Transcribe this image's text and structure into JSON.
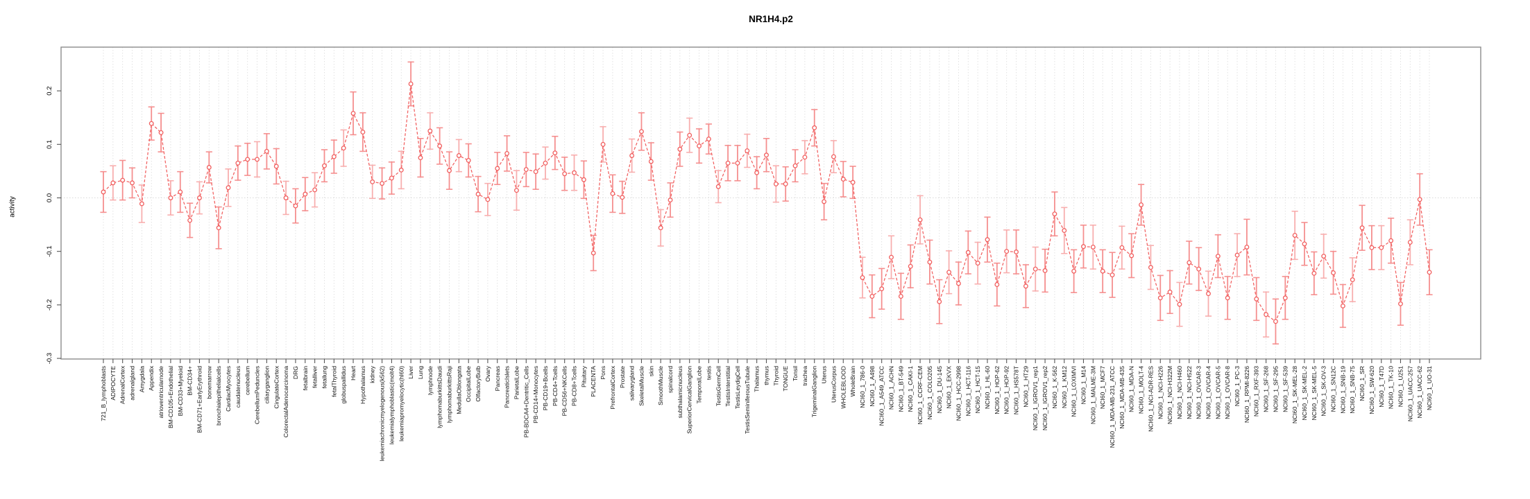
{
  "figure": {
    "title": "NR1H4.p2"
  },
  "chart_data": {
    "type": "line",
    "title": "NR1H4.p2",
    "xlabel": "",
    "ylabel": "activity",
    "ylim": [
      -0.3,
      0.28
    ],
    "yticks": [
      0.2,
      0.1,
      0.0,
      -0.1,
      -0.2,
      -0.3
    ],
    "grid": "vertical dotted gridline per category; dotted horizontal line at y=0",
    "legend_position": "none",
    "marker": "open-circle with error bars, dashed connecting line",
    "series_color": "#f15f5f",
    "errorbar_color": "#f59292",
    "categories": [
      "721_B_lymphoblasts",
      "ADIPOCYTE",
      "AdrenalCortex",
      "adrenalgland",
      "Amygdala",
      "Appendix",
      "atrioventricularnode",
      "BM-CD105+Endothelial",
      "BM-CD33+Myeloid",
      "BM-CD34+",
      "BM-CD71+EarlyErythroid",
      "bonemarrow",
      "bronchialepithelialcells",
      "CardiacMyocytes",
      "caudatenucleus",
      "cerebellum",
      "CerebellumPeduncles",
      "ciliaryganglion",
      "CingulateCortex",
      "ColorectalAdenocarcinoma",
      "DRG",
      "fetalbrain",
      "fetalliver",
      "fetallung",
      "fetalThyroid",
      "globuspallidus",
      "Heart",
      "Hypothalamus",
      "kidney",
      "leukemiachronicmyelogenous(k562)",
      "leukemialymphoblastic(molt4)",
      "leukemiapromyelocytic(hl60)",
      "Liver",
      "Lung",
      "lymphnode",
      "lymphomaburkittsDaudi",
      "lymphomaburkittsRaji",
      "MedullaOblongata",
      "OccipitalLobe",
      "OlfactoryBulb",
      "Ovary",
      "Pancreas",
      "PancreaticIslets",
      "ParietalLobe",
      "PB-BDCA4+Dentritic_Cells",
      "PB-CD14+Monocytes",
      "PB-CD19+Bcells",
      "PB-CD4+Tcells",
      "PB-CD56+NKCells",
      "PB-CD8+Tcells",
      "Pituitary",
      "PLACENTA",
      "Pons",
      "PrefrontalCortex",
      "Prostate",
      "salivarygland",
      "SkeletalMuscle",
      "skin",
      "SmoothMuscle",
      "spinalcord",
      "subthalamicnucleus",
      "SuperiorCervicalGanglion",
      "TemporalLobe",
      "testis",
      "TestisGermCell",
      "TestisInterstitial",
      "TestisLeydigCell",
      "TestisSeminiferousTubule",
      "Thalamus",
      "thymus",
      "Thyroid",
      "TONGUE",
      "Tonsil",
      "trachea",
      "TrigeminalGanglion",
      "Uterus",
      "UterusCorpus",
      "WHOLEBLOOD",
      "WholeBrain",
      "NCI60_1_786-0",
      "NCI60_1_A498",
      "NCI60_1_A549_ATCC",
      "NCI60_1_ACHN",
      "NCI60_1_BT-549",
      "NCI60_1_CAKI-1",
      "NCI60_1_CCRF-CEM",
      "NCI60_1_COLO205",
      "NCI60_1_DU-145",
      "NCI60_1_EKVX",
      "NCI60_1_HCC-2998",
      "NCI60_1_HCT-116",
      "NCI60_1_HCT-15",
      "NCI60_1_HL-60",
      "NCI60_1_HOP-62",
      "NCI60_1_HOP-92",
      "NCI60_1_HS578T",
      "NCI60_1_HT29",
      "NCI60_1_IGROV1_rep1",
      "NCI60_1_IGROV1_rep2",
      "NCI60_1_K-562",
      "NCI60_1_KM12",
      "NCI60_1_LOXIMVI",
      "NCI60_1_M14",
      "NCI60_1_MALME-3M",
      "NCI60_1_MCF7",
      "NCI60_1_MDA-MB-231_ATCC",
      "NCI60_1_MDA-MB-435",
      "NCI60_1_MDA-N",
      "NCI60_1_MOLT-4",
      "NCI60_1_NCI-ADR-RES",
      "NCI60_1_NCI-H226",
      "NCI60_1_NCI-H322M",
      "NCI60_1_NCI-H460",
      "NCI60_1_NCI-H522",
      "NCI60_1_OVCAR-3",
      "NCI60_1_OVCAR-4",
      "NCI60_1_OVCAR-5",
      "NCI60_1_OVCAR-8",
      "NCI60_1_PC-3",
      "NCI60_1_RPMI-8226",
      "NCI60_1_RXF-393",
      "NCI60_1_SF-268",
      "NCI60_1_SF-295",
      "NCI60_1_SF-539",
      "NCI60_1_SK-MEL-28",
      "NCI60_1_SK-MEL-2",
      "NCI60_1_SK-MEL-5",
      "NCI60_1_SK-OV-3",
      "NCI60_1_SN12C",
      "NCI60_1_SNB-19",
      "NCI60_1_SNB-75",
      "NCI60_1_SR",
      "NCI60_1_SW-620",
      "NCI60_1_T47D",
      "NCI60_1_TK-10",
      "NCI60_1_U251",
      "NCI60_1_UACC-257",
      "NCI60_1_UACC-62",
      "NCI60_1_UO-31"
    ],
    "values": [
      0.011,
      0.028,
      0.033,
      0.028,
      -0.011,
      0.139,
      0.122,
      0.0,
      0.011,
      -0.042,
      0.0,
      0.057,
      -0.056,
      0.019,
      0.065,
      0.072,
      0.072,
      0.087,
      0.059,
      0.0,
      -0.015,
      0.007,
      0.015,
      0.06,
      0.077,
      0.093,
      0.158,
      0.123,
      0.03,
      0.027,
      0.037,
      0.052,
      0.213,
      0.075,
      0.125,
      0.097,
      0.051,
      0.079,
      0.07,
      0.007,
      -0.003,
      0.055,
      0.083,
      0.014,
      0.053,
      0.049,
      0.065,
      0.084,
      0.045,
      0.047,
      0.034,
      -0.103,
      0.1,
      0.008,
      0.001,
      0.079,
      0.124,
      0.068,
      -0.056,
      -0.004,
      0.091,
      0.117,
      0.097,
      0.11,
      0.021,
      0.065,
      0.065,
      0.088,
      0.047,
      0.08,
      0.026,
      0.026,
      0.06,
      0.076,
      0.131,
      -0.007,
      0.077,
      0.035,
      0.029,
      -0.149,
      -0.184,
      -0.17,
      -0.111,
      -0.184,
      -0.128,
      -0.041,
      -0.12,
      -0.194,
      -0.139,
      -0.16,
      -0.102,
      -0.122,
      -0.078,
      -0.162,
      -0.1,
      -0.101,
      -0.165,
      -0.133,
      -0.136,
      -0.03,
      -0.061,
      -0.137,
      -0.091,
      -0.092,
      -0.137,
      -0.144,
      -0.093,
      -0.108,
      -0.013,
      -0.13,
      -0.187,
      -0.176,
      -0.199,
      -0.121,
      -0.133,
      -0.179,
      -0.109,
      -0.187,
      -0.107,
      -0.092,
      -0.189,
      -0.218,
      -0.231,
      -0.187,
      -0.07,
      -0.086,
      -0.141,
      -0.109,
      -0.14,
      -0.202,
      -0.153,
      -0.056,
      -0.093,
      -0.093,
      -0.08,
      -0.198,
      -0.083,
      -0.003,
      -0.139
    ],
    "errors": [
      0.038,
      0.032,
      0.037,
      0.028,
      0.035,
      0.031,
      0.036,
      0.032,
      0.038,
      0.032,
      0.03,
      0.029,
      0.039,
      0.035,
      0.032,
      0.03,
      0.033,
      0.033,
      0.033,
      0.031,
      0.032,
      0.031,
      0.032,
      0.03,
      0.031,
      0.034,
      0.04,
      0.036,
      0.031,
      0.029,
      0.03,
      0.035,
      0.041,
      0.036,
      0.034,
      0.034,
      0.035,
      0.03,
      0.031,
      0.033,
      0.03,
      0.03,
      0.033,
      0.037,
      0.032,
      0.033,
      0.03,
      0.031,
      0.031,
      0.033,
      0.035,
      0.033,
      0.033,
      0.035,
      0.03,
      0.031,
      0.035,
      0.035,
      0.034,
      0.032,
      0.032,
      0.032,
      0.032,
      0.028,
      0.03,
      0.033,
      0.033,
      0.031,
      0.03,
      0.031,
      0.034,
      0.032,
      0.03,
      0.031,
      0.034,
      0.034,
      0.03,
      0.033,
      0.03,
      0.038,
      0.04,
      0.038,
      0.04,
      0.043,
      0.04,
      0.045,
      0.041,
      0.041,
      0.04,
      0.04,
      0.04,
      0.039,
      0.042,
      0.04,
      0.04,
      0.041,
      0.04,
      0.041,
      0.04,
      0.041,
      0.043,
      0.04,
      0.04,
      0.041,
      0.04,
      0.042,
      0.04,
      0.041,
      0.038,
      0.041,
      0.042,
      0.04,
      0.041,
      0.04,
      0.04,
      0.042,
      0.04,
      0.04,
      0.04,
      0.052,
      0.04,
      0.042,
      0.042,
      0.04,
      0.045,
      0.04,
      0.04,
      0.041,
      0.04,
      0.04,
      0.041,
      0.042,
      0.041,
      0.041,
      0.042,
      0.04,
      0.042,
      0.048,
      0.042
    ]
  }
}
